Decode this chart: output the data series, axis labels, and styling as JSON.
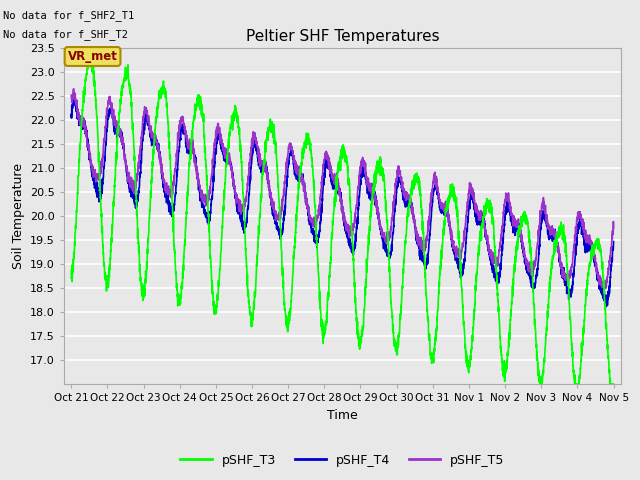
{
  "title": "Peltier SHF Temperatures",
  "xlabel": "Time",
  "ylabel": "Soil Temperature",
  "ylim": [
    16.5,
    23.5
  ],
  "no_data_text": [
    "No data for f_SHF2_T1",
    "No data for f_SHF_T2"
  ],
  "vr_met_label": "VR_met",
  "legend_labels": [
    "pSHF_T3",
    "pSHF_T4",
    "pSHF_T5"
  ],
  "line_colors": [
    "#00FF00",
    "#0000CD",
    "#9933CC"
  ],
  "background_color": "#E8E8E8",
  "grid_color": "#FFFFFF",
  "xtick_labels": [
    "Oct 21",
    "Oct 22",
    "Oct 23",
    "Oct 24",
    "Oct 25",
    "Oct 26",
    "Oct 27",
    "Oct 28",
    "Oct 29",
    "Oct 30",
    "Oct 31",
    "Nov 1",
    "Nov 2",
    "Nov 3",
    "Nov 4",
    "Nov 5"
  ],
  "figwidth": 6.4,
  "figheight": 4.8,
  "dpi": 100
}
